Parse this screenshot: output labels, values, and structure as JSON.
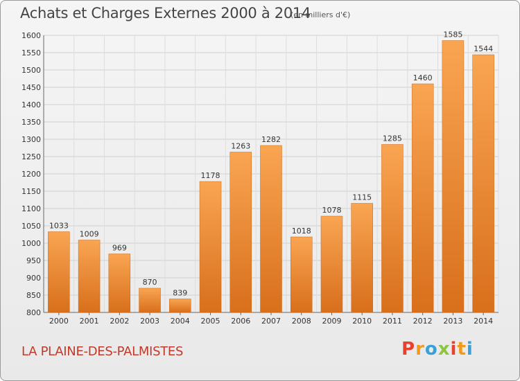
{
  "header": {
    "title": "Achats et Charges Externes 2000 à 2014",
    "subtitle": "(en milliers d'€)"
  },
  "footer": {
    "location": "LA PLAINE-DES-PALMISTES",
    "logo_letters": [
      "P",
      "r",
      "o",
      "x",
      "i",
      "t",
      "i"
    ],
    "logo_colors": [
      "#e8412c",
      "#f29a1d",
      "#3aa0d8",
      "#8cc63e",
      "#e8412c",
      "#f29a1d",
      "#3aa0d8"
    ]
  },
  "chart_data": {
    "type": "bar",
    "title": "Achats et Charges Externes 2000 à 2014",
    "subtitle": "(en milliers d'€)",
    "categories": [
      "2000",
      "2001",
      "2002",
      "2003",
      "2004",
      "2005",
      "2006",
      "2007",
      "2008",
      "2009",
      "2010",
      "2011",
      "2012",
      "2013",
      "2014"
    ],
    "values": [
      1033,
      1009,
      969,
      870,
      839,
      1178,
      1263,
      1282,
      1018,
      1078,
      1115,
      1285,
      1460,
      1585,
      1544
    ],
    "ylim": [
      800,
      1600
    ],
    "yticks": [
      800,
      850,
      900,
      950,
      1000,
      1050,
      1100,
      1150,
      1200,
      1250,
      1300,
      1350,
      1400,
      1450,
      1500,
      1550,
      1600
    ],
    "grid": true,
    "bar_color_light": "#f9a552",
    "bar_color_dark": "#d86f1b"
  }
}
